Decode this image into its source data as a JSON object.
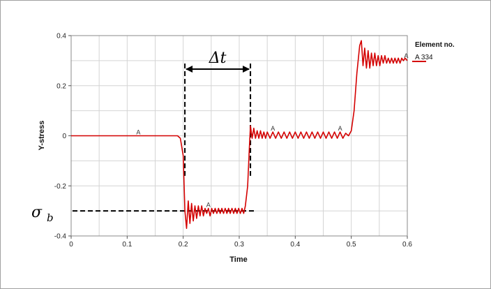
{
  "chart_data": {
    "type": "line",
    "title": "",
    "xlabel": "Time",
    "ylabel": "Y-stress",
    "xlim": [
      0,
      0.6
    ],
    "ylim": [
      -0.4,
      0.4
    ],
    "grid": true,
    "x_ticks": [
      "0",
      "0.1",
      "0.2",
      "0.3",
      "0.4",
      "0.5",
      "0.6"
    ],
    "y_ticks": [
      "-0.4",
      "-0.2",
      "0",
      "0.2",
      "0.4"
    ],
    "legend": {
      "title": "Element no.",
      "placement": "top-right"
    },
    "series": [
      {
        "name": "A  334",
        "marker": "A",
        "color": "#d40000",
        "x": [
          0,
          0.19,
          0.195,
          0.2,
          0.203,
          0.206,
          0.209,
          0.212,
          0.215,
          0.218,
          0.221,
          0.224,
          0.227,
          0.23,
          0.233,
          0.236,
          0.239,
          0.242,
          0.245,
          0.248,
          0.251,
          0.254,
          0.257,
          0.26,
          0.263,
          0.266,
          0.269,
          0.272,
          0.275,
          0.278,
          0.281,
          0.284,
          0.287,
          0.29,
          0.293,
          0.296,
          0.299,
          0.302,
          0.305,
          0.308,
          0.311,
          0.315,
          0.318,
          0.32,
          0.323,
          0.326,
          0.329,
          0.332,
          0.335,
          0.338,
          0.341,
          0.344,
          0.347,
          0.35,
          0.355,
          0.36,
          0.365,
          0.37,
          0.375,
          0.38,
          0.385,
          0.39,
          0.395,
          0.4,
          0.405,
          0.41,
          0.415,
          0.42,
          0.425,
          0.43,
          0.435,
          0.44,
          0.445,
          0.45,
          0.455,
          0.46,
          0.465,
          0.47,
          0.475,
          0.48,
          0.485,
          0.49,
          0.495,
          0.5,
          0.505,
          0.51,
          0.515,
          0.518,
          0.521,
          0.524,
          0.527,
          0.53,
          0.533,
          0.536,
          0.539,
          0.542,
          0.545,
          0.548,
          0.551,
          0.554,
          0.557,
          0.56,
          0.563,
          0.566,
          0.569,
          0.572,
          0.575,
          0.578,
          0.581,
          0.584,
          0.587,
          0.59,
          0.593,
          0.596,
          0.6
        ],
        "y": [
          0,
          0,
          -0.01,
          -0.08,
          -0.3,
          -0.37,
          -0.26,
          -0.35,
          -0.27,
          -0.34,
          -0.28,
          -0.33,
          -0.28,
          -0.32,
          -0.28,
          -0.32,
          -0.29,
          -0.31,
          -0.29,
          -0.32,
          -0.29,
          -0.31,
          -0.29,
          -0.31,
          -0.29,
          -0.31,
          -0.29,
          -0.31,
          -0.29,
          -0.31,
          -0.29,
          -0.31,
          -0.29,
          -0.31,
          -0.29,
          -0.31,
          -0.29,
          -0.31,
          -0.29,
          -0.31,
          -0.28,
          -0.2,
          -0.05,
          0.04,
          -0.01,
          0.03,
          -0.01,
          0.02,
          -0.01,
          0.02,
          -0.01,
          0.015,
          -0.01,
          0.015,
          -0.01,
          0.015,
          -0.01,
          0.015,
          -0.01,
          0.015,
          -0.01,
          0.015,
          -0.01,
          0.015,
          -0.01,
          0.015,
          -0.01,
          0.015,
          -0.01,
          0.015,
          -0.01,
          0.015,
          -0.01,
          0.015,
          -0.01,
          0.015,
          -0.01,
          0.015,
          -0.01,
          0.015,
          -0.01,
          0.01,
          0.0,
          0.02,
          0.1,
          0.25,
          0.36,
          0.38,
          0.28,
          0.35,
          0.27,
          0.34,
          0.27,
          0.33,
          0.28,
          0.33,
          0.28,
          0.32,
          0.28,
          0.32,
          0.29,
          0.32,
          0.29,
          0.31,
          0.29,
          0.31,
          0.29,
          0.31,
          0.29,
          0.31,
          0.29,
          0.31,
          0.3,
          0.31,
          0.3
        ],
        "marker_x": [
          0.12,
          0.245,
          0.36,
          0.48,
          0.598
        ]
      }
    ],
    "annotations": {
      "delta_t": {
        "label": "Δt",
        "x_start": 0.203,
        "x_end": 0.32
      },
      "sigma_b": {
        "label": "σ",
        "subscript": "b",
        "y": -0.3
      }
    }
  }
}
